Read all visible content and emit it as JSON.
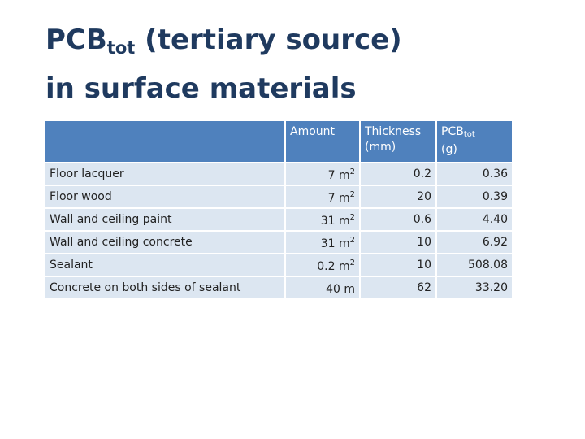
{
  "slide": {
    "title_main": "PCB",
    "title_sub": "tot",
    "title_rest": " (tertiary source)",
    "title_line2": "in surface materials"
  },
  "table": {
    "headers": {
      "amount": "Amount",
      "thickness_line1": "Thickness",
      "thickness_line2": "(mm)",
      "pcb_main": "PCB",
      "pcb_sub": "tot",
      "pcb_unit": "(g)"
    },
    "rows": [
      {
        "material": "Floor lacquer",
        "amount_value": "7 m",
        "amount_sup": "2",
        "thickness": "0.2",
        "pcb": "0.36"
      },
      {
        "material": "Floor wood",
        "amount_value": "7 m",
        "amount_sup": "2",
        "thickness": "20",
        "pcb": "0.39"
      },
      {
        "material": "Wall and ceiling paint",
        "amount_value": "31 m",
        "amount_sup": "2",
        "thickness": "0.6",
        "pcb": "4.40"
      },
      {
        "material": "Wall and ceiling concrete",
        "amount_value": "31 m",
        "amount_sup": "2",
        "thickness": "10",
        "pcb": "6.92"
      },
      {
        "material": "Sealant",
        "amount_value": "0.2 m",
        "amount_sup": "2",
        "thickness": "10",
        "pcb": "508.08"
      },
      {
        "material": "Concrete on both sides of sealant",
        "amount_value": "40 m",
        "amount_sup": "",
        "thickness": "62",
        "pcb": "33.20"
      }
    ]
  }
}
